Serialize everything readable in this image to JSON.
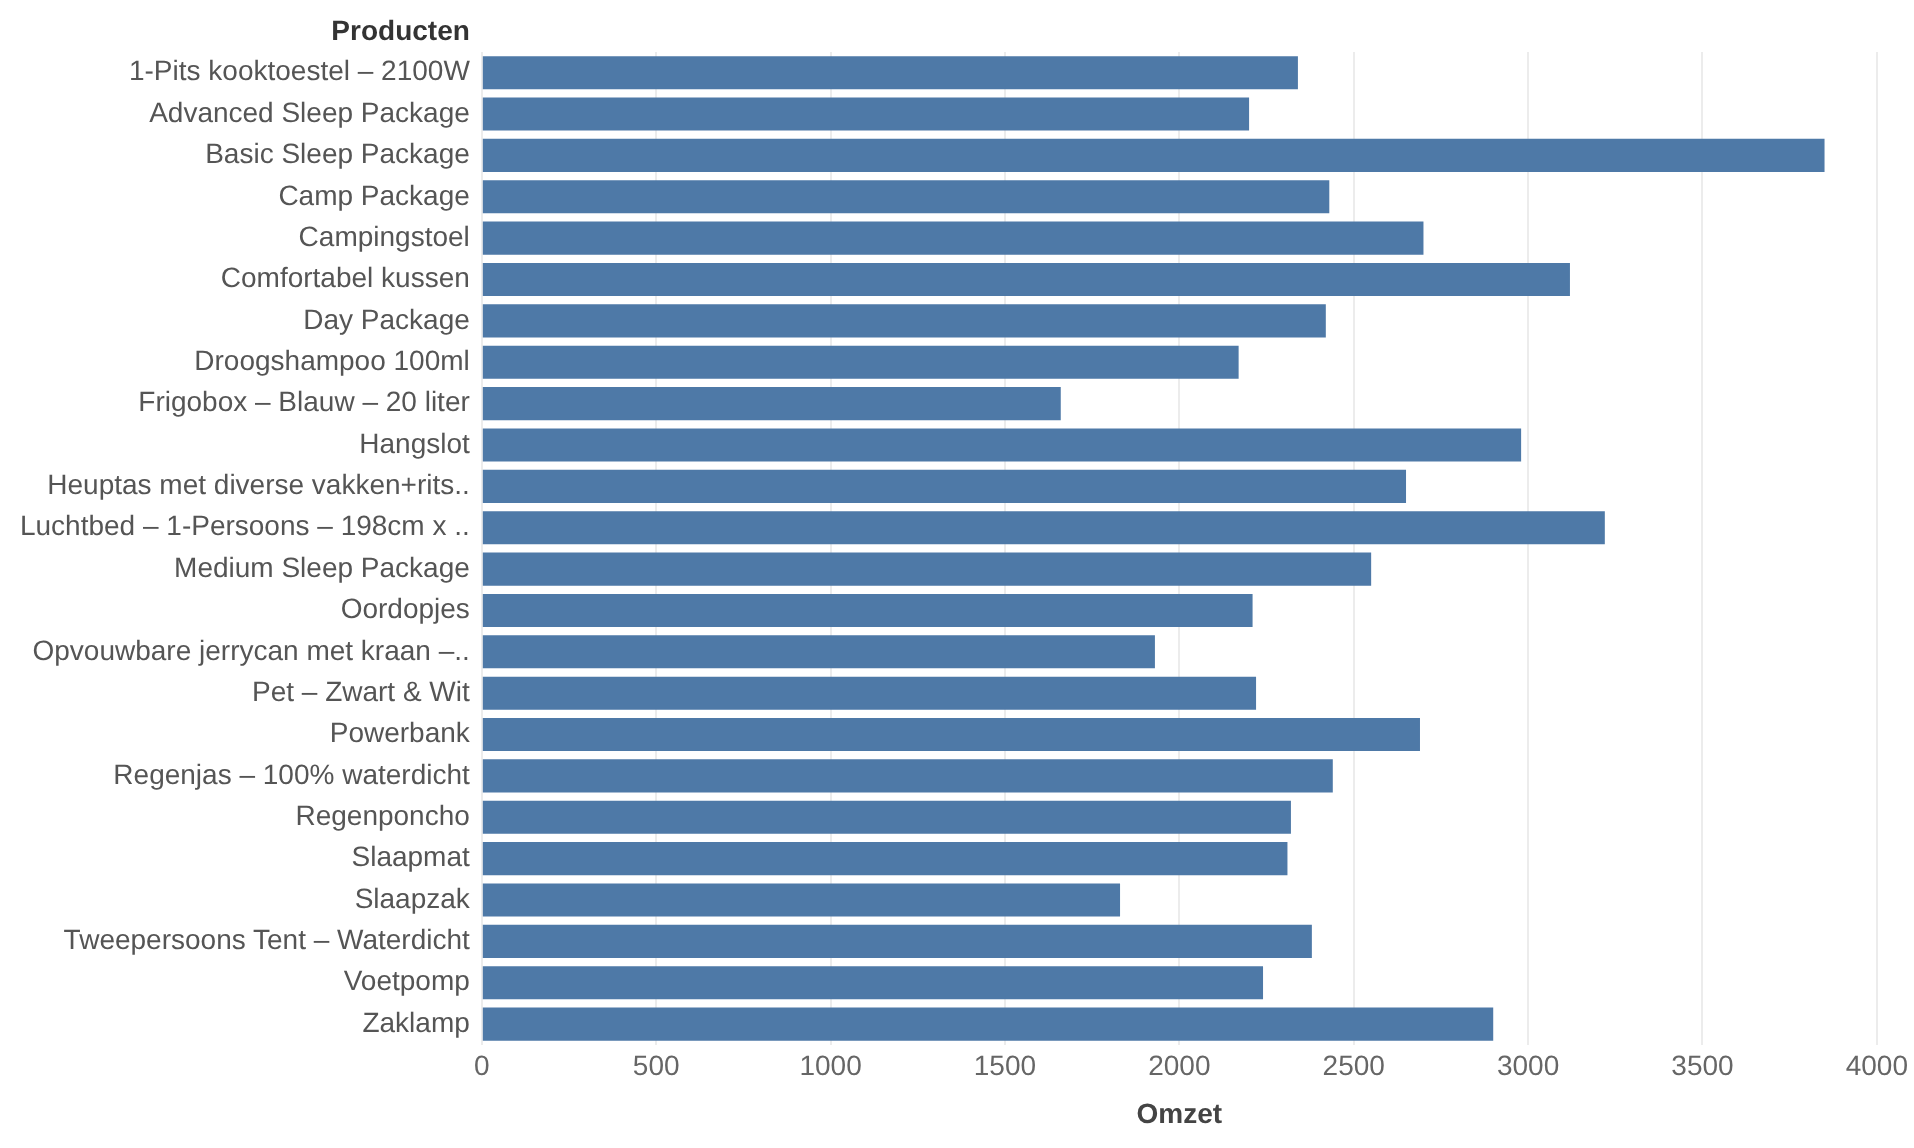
{
  "chart_data": {
    "type": "bar",
    "orientation": "horizontal",
    "ylabel": "Producten",
    "xlabel": "Omzet",
    "categories": [
      "1-Pits kooktoestel – 2100W",
      "Advanced Sleep Package",
      "Basic Sleep Package",
      "Camp Package",
      "Campingstoel",
      "Comfortabel kussen",
      "Day Package",
      "Droogshampoo 100ml",
      "Frigobox – Blauw – 20 liter",
      "Hangslot",
      "Heuptas met diverse vakken+rits..",
      "Luchtbed – 1-Persoons – 198cm x ..",
      "Medium Sleep Package",
      "Oordopjes",
      "Opvouwbare jerrycan met kraan –..",
      "Pet – Zwart & Wit",
      "Powerbank",
      "Regenjas – 100% waterdicht",
      "Regenponcho",
      "Slaapmat",
      "Slaapzak",
      "Tweepersoons Tent – Waterdicht",
      "Voetpomp",
      "Zaklamp"
    ],
    "values": [
      2340,
      2200,
      3850,
      2430,
      2700,
      3120,
      2420,
      2170,
      1660,
      2980,
      2650,
      3220,
      2550,
      2210,
      1930,
      2220,
      2690,
      2440,
      2320,
      2310,
      1830,
      2380,
      2240,
      2900
    ],
    "color": "#4e79a7",
    "xlim": [
      0,
      4000
    ],
    "xticks": [
      0,
      500,
      1000,
      1500,
      2000,
      2500,
      3000,
      3500,
      4000
    ],
    "grid": "x",
    "legend": false
  }
}
